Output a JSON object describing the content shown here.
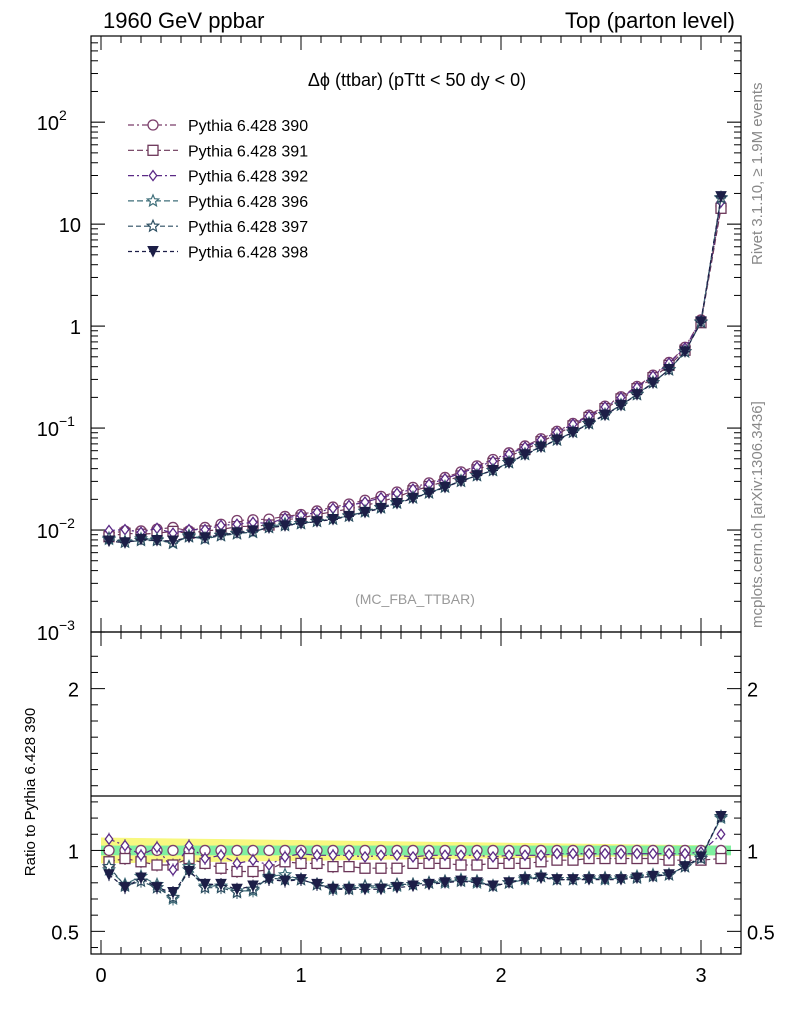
{
  "header": {
    "left": "1960 GeV ppbar",
    "right": "Top (parton level)"
  },
  "plot_title": "Δϕ (ttbar) (pTtt < 50 dy < 0)",
  "analysis_tag": "(MC_FBA_TTBAR)",
  "side_labels": {
    "rivet": "Rivet 3.1.10, ≥ 1.9M events",
    "mcplots": "mcplots.cern.ch [arXiv:1306.3436]"
  },
  "ratio_ylabel": "Ratio to Pythia 6.428 390",
  "colors": {
    "s390": "#7b3f6b",
    "s391": "#6b3558",
    "s392": "#5b2a86",
    "s396": "#3f6f7a",
    "s397": "#2d4f62",
    "s398": "#1c1e47",
    "band_inner": "#7ff0a0",
    "band_outer": "#f8f880"
  },
  "chart_data": [
    {
      "type": "line",
      "panel": "main",
      "yscale": "log",
      "xlim": [
        -0.05,
        3.2
      ],
      "ylim": [
        0.001,
        700
      ],
      "y_ticks": [
        "10^-3",
        "10^-2",
        "10^-1",
        "1",
        "10",
        "10^2"
      ],
      "legend_position": "top-left",
      "x": [
        0.04,
        0.12,
        0.2,
        0.28,
        0.36,
        0.44,
        0.52,
        0.6,
        0.68,
        0.76,
        0.84,
        0.92,
        1.0,
        1.08,
        1.16,
        1.24,
        1.32,
        1.4,
        1.48,
        1.56,
        1.64,
        1.72,
        1.8,
        1.88,
        1.96,
        2.04,
        2.12,
        2.2,
        2.28,
        2.36,
        2.44,
        2.52,
        2.6,
        2.68,
        2.76,
        2.84,
        2.92,
        3.0,
        3.1
      ],
      "series": [
        {
          "name": "Pythia 6.428 390",
          "marker": "open-circle",
          "values": [
            0.0092,
            0.0098,
            0.0098,
            0.0102,
            0.0106,
            0.0098,
            0.0106,
            0.0114,
            0.0124,
            0.0126,
            0.0128,
            0.0136,
            0.0142,
            0.0154,
            0.0168,
            0.018,
            0.0196,
            0.0214,
            0.0236,
            0.0262,
            0.029,
            0.0328,
            0.0372,
            0.0426,
            0.0492,
            0.0572,
            0.0668,
            0.0786,
            0.093,
            0.111,
            0.134,
            0.164,
            0.203,
            0.256,
            0.33,
            0.44,
            0.62,
            1.15,
            15
          ]
        },
        {
          "name": "Pythia 6.428 391",
          "marker": "open-square",
          "values": [
            0.0086,
            0.0093,
            0.0091,
            0.0093,
            0.0097,
            0.0093,
            0.0098,
            0.0101,
            0.0108,
            0.0109,
            0.0112,
            0.0126,
            0.0131,
            0.0142,
            0.0151,
            0.0161,
            0.0174,
            0.019,
            0.0211,
            0.0242,
            0.0267,
            0.0301,
            0.0339,
            0.0389,
            0.0451,
            0.0527,
            0.0616,
            0.0734,
            0.0874,
            0.105,
            0.127,
            0.155,
            0.193,
            0.243,
            0.312,
            0.412,
            0.58,
            1.08,
            14.3
          ]
        },
        {
          "name": "Pythia 6.428 392",
          "marker": "open-diamond",
          "values": [
            0.0099,
            0.0101,
            0.0095,
            0.0104,
            0.0093,
            0.0101,
            0.0101,
            0.0111,
            0.0114,
            0.0119,
            0.0116,
            0.0131,
            0.0139,
            0.0149,
            0.0163,
            0.0174,
            0.0188,
            0.0207,
            0.0229,
            0.0252,
            0.0281,
            0.0318,
            0.0361,
            0.0414,
            0.0473,
            0.0555,
            0.0651,
            0.0766,
            0.091,
            0.109,
            0.131,
            0.161,
            0.199,
            0.251,
            0.324,
            0.433,
            0.61,
            1.14,
            16.5
          ]
        },
        {
          "name": "Pythia 6.428 396",
          "marker": "open-star",
          "values": [
            0.0081,
            0.0077,
            0.0082,
            0.0081,
            0.0074,
            0.0088,
            0.0083,
            0.0089,
            0.0093,
            0.0095,
            0.0108,
            0.0115,
            0.0116,
            0.0122,
            0.0128,
            0.0138,
            0.0151,
            0.0165,
            0.0184,
            0.0207,
            0.0232,
            0.0264,
            0.0304,
            0.0342,
            0.0386,
            0.0459,
            0.0551,
            0.0661,
            0.0767,
            0.0916,
            0.111,
            0.135,
            0.168,
            0.215,
            0.279,
            0.375,
            0.56,
            1.1,
            18
          ]
        },
        {
          "name": "Pythia 6.428 397",
          "marker": "open-star",
          "values": [
            0.0083,
            0.0076,
            0.0079,
            0.0079,
            0.0075,
            0.0086,
            0.0082,
            0.0088,
            0.0092,
            0.0096,
            0.0106,
            0.0111,
            0.0116,
            0.0122,
            0.0129,
            0.0137,
            0.0153,
            0.0167,
            0.0186,
            0.0208,
            0.0232,
            0.0266,
            0.0301,
            0.0343,
            0.0384,
            0.046,
            0.0555,
            0.0657,
            0.0767,
            0.0913,
            0.111,
            0.136,
            0.168,
            0.213,
            0.279,
            0.372,
            0.56,
            1.09,
            18.2
          ]
        },
        {
          "name": "Pythia 6.428 398",
          "marker": "filled-triangle-down",
          "values": [
            0.0078,
            0.0075,
            0.0081,
            0.0079,
            0.0078,
            0.0085,
            0.0084,
            0.009,
            0.0094,
            0.0098,
            0.0105,
            0.011,
            0.0116,
            0.0121,
            0.0127,
            0.0136,
            0.0149,
            0.0163,
            0.0182,
            0.0205,
            0.023,
            0.0262,
            0.0301,
            0.0342,
            0.0384,
            0.0455,
            0.0548,
            0.0652,
            0.0763,
            0.0906,
            0.11,
            0.134,
            0.167,
            0.213,
            0.277,
            0.375,
            0.56,
            1.1,
            18.6
          ]
        }
      ]
    },
    {
      "type": "line",
      "panel": "ratio",
      "xlim": [
        -0.05,
        3.2
      ],
      "ylim": [
        0.36,
        2.35
      ],
      "ylabel": "Ratio to Pythia 6.428 390",
      "x_ticks": [
        "0",
        "1",
        "2",
        "3"
      ],
      "y_ticks": [
        "0.5",
        "1",
        "2"
      ],
      "reference_band": {
        "inner_halfwidth": 0.03,
        "outer_halfwidth_start": 0.08,
        "outer_halfwidth_end": 0.03
      },
      "x": [
        0.04,
        0.12,
        0.2,
        0.28,
        0.36,
        0.44,
        0.52,
        0.6,
        0.68,
        0.76,
        0.84,
        0.92,
        1.0,
        1.08,
        1.16,
        1.24,
        1.32,
        1.4,
        1.48,
        1.56,
        1.64,
        1.72,
        1.8,
        1.88,
        1.96,
        2.04,
        2.12,
        2.2,
        2.28,
        2.36,
        2.44,
        2.52,
        2.6,
        2.68,
        2.76,
        2.84,
        2.92,
        3.0,
        3.1
      ],
      "series": [
        {
          "name": "Pythia 6.428 391",
          "values": [
            0.93,
            0.95,
            0.93,
            0.91,
            0.91,
            0.95,
            0.92,
            0.89,
            0.87,
            0.87,
            0.88,
            0.93,
            0.92,
            0.92,
            0.9,
            0.9,
            0.89,
            0.89,
            0.89,
            0.92,
            0.92,
            0.92,
            0.91,
            0.91,
            0.92,
            0.92,
            0.92,
            0.93,
            0.94,
            0.94,
            0.95,
            0.95,
            0.95,
            0.95,
            0.95,
            0.94,
            0.94,
            0.94,
            0.95
          ]
        },
        {
          "name": "Pythia 6.428 392",
          "values": [
            1.07,
            1.03,
            0.97,
            1.02,
            0.88,
            1.03,
            0.95,
            0.97,
            0.92,
            0.94,
            0.91,
            0.96,
            0.98,
            0.97,
            0.97,
            0.97,
            0.96,
            0.97,
            0.97,
            0.96,
            0.97,
            0.97,
            0.97,
            0.97,
            0.96,
            0.97,
            0.97,
            0.97,
            0.98,
            0.98,
            0.98,
            0.98,
            0.98,
            0.98,
            0.98,
            0.98,
            0.98,
            0.99,
            1.1
          ]
        },
        {
          "name": "Pythia 6.428 396",
          "values": [
            0.88,
            0.79,
            0.84,
            0.79,
            0.7,
            0.9,
            0.78,
            0.78,
            0.75,
            0.75,
            0.84,
            0.85,
            0.82,
            0.79,
            0.76,
            0.77,
            0.77,
            0.77,
            0.78,
            0.79,
            0.8,
            0.8,
            0.82,
            0.8,
            0.78,
            0.8,
            0.82,
            0.84,
            0.82,
            0.82,
            0.83,
            0.82,
            0.83,
            0.84,
            0.85,
            0.85,
            0.9,
            0.96,
            1.2
          ]
        },
        {
          "name": "Pythia 6.428 397",
          "values": [
            0.9,
            0.78,
            0.81,
            0.77,
            0.71,
            0.88,
            0.77,
            0.77,
            0.74,
            0.76,
            0.83,
            0.82,
            0.82,
            0.79,
            0.77,
            0.76,
            0.78,
            0.78,
            0.79,
            0.79,
            0.8,
            0.81,
            0.81,
            0.81,
            0.78,
            0.8,
            0.83,
            0.84,
            0.82,
            0.82,
            0.83,
            0.83,
            0.83,
            0.83,
            0.84,
            0.85,
            0.9,
            0.95,
            1.21
          ]
        },
        {
          "name": "Pythia 6.428 398",
          "values": [
            0.85,
            0.77,
            0.83,
            0.77,
            0.74,
            0.87,
            0.79,
            0.79,
            0.76,
            0.78,
            0.82,
            0.81,
            0.82,
            0.79,
            0.76,
            0.76,
            0.76,
            0.76,
            0.77,
            0.78,
            0.79,
            0.8,
            0.81,
            0.8,
            0.78,
            0.8,
            0.82,
            0.83,
            0.82,
            0.82,
            0.82,
            0.82,
            0.82,
            0.83,
            0.84,
            0.85,
            0.9,
            0.96,
            1.21
          ]
        }
      ]
    }
  ]
}
